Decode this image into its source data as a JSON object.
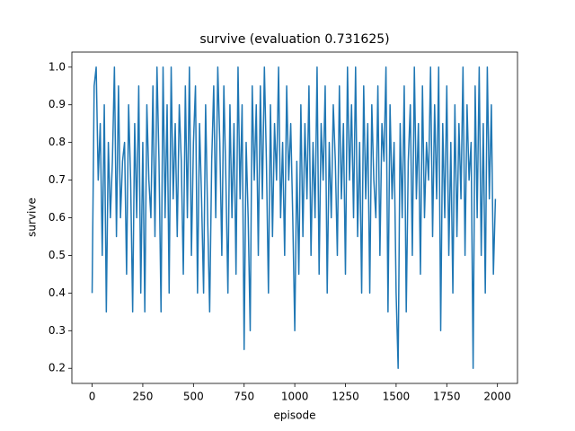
{
  "chart_data": {
    "type": "line",
    "title": "survive (evaluation 0.731625)",
    "xlabel": "episode",
    "ylabel": "survive",
    "color": "#1f77b4",
    "x": [
      0,
      10,
      20,
      30,
      40,
      50,
      60,
      70,
      80,
      90,
      100,
      110,
      120,
      130,
      140,
      150,
      160,
      170,
      180,
      190,
      200,
      210,
      220,
      230,
      240,
      250,
      260,
      270,
      280,
      290,
      300,
      310,
      320,
      330,
      340,
      350,
      360,
      370,
      380,
      390,
      400,
      410,
      420,
      430,
      440,
      450,
      460,
      470,
      480,
      490,
      500,
      510,
      520,
      530,
      540,
      550,
      560,
      570,
      580,
      590,
      600,
      610,
      620,
      630,
      640,
      650,
      660,
      670,
      680,
      690,
      700,
      710,
      720,
      730,
      740,
      750,
      760,
      770,
      780,
      790,
      800,
      810,
      820,
      830,
      840,
      850,
      860,
      870,
      880,
      890,
      900,
      910,
      920,
      930,
      940,
      950,
      960,
      970,
      980,
      990,
      1000,
      1010,
      1020,
      1030,
      1040,
      1050,
      1060,
      1070,
      1080,
      1090,
      1100,
      1110,
      1120,
      1130,
      1140,
      1150,
      1160,
      1170,
      1180,
      1190,
      1200,
      1210,
      1220,
      1230,
      1240,
      1250,
      1260,
      1270,
      1280,
      1290,
      1300,
      1310,
      1320,
      1330,
      1340,
      1350,
      1360,
      1370,
      1380,
      1390,
      1400,
      1410,
      1420,
      1430,
      1440,
      1450,
      1460,
      1470,
      1480,
      1490,
      1500,
      1510,
      1520,
      1530,
      1540,
      1550,
      1560,
      1570,
      1580,
      1590,
      1600,
      1610,
      1620,
      1630,
      1640,
      1650,
      1660,
      1670,
      1680,
      1690,
      1700,
      1710,
      1720,
      1730,
      1740,
      1750,
      1760,
      1770,
      1780,
      1790,
      1800,
      1810,
      1820,
      1830,
      1840,
      1850,
      1860,
      1870,
      1880,
      1890,
      1900,
      1910,
      1920,
      1930,
      1940,
      1950,
      1960,
      1970,
      1980,
      1990
    ],
    "values": [
      0.4,
      0.95,
      1.0,
      0.7,
      0.85,
      0.5,
      0.9,
      0.35,
      0.8,
      0.6,
      0.75,
      1.0,
      0.55,
      0.95,
      0.6,
      0.75,
      0.8,
      0.45,
      0.9,
      0.7,
      0.35,
      0.85,
      0.6,
      0.95,
      0.4,
      0.8,
      0.35,
      0.9,
      0.7,
      0.6,
      0.95,
      0.55,
      1.0,
      0.75,
      0.35,
      1.0,
      0.6,
      0.9,
      0.4,
      1.0,
      0.65,
      0.85,
      0.55,
      0.9,
      0.75,
      0.45,
      0.95,
      0.6,
      1.0,
      0.5,
      0.8,
      0.95,
      0.4,
      0.85,
      0.65,
      0.4,
      0.9,
      0.6,
      0.35,
      0.75,
      0.95,
      0.6,
      1.0,
      0.8,
      0.5,
      0.95,
      0.7,
      0.4,
      0.9,
      0.6,
      0.85,
      0.45,
      1.0,
      0.65,
      0.9,
      0.25,
      0.8,
      0.6,
      0.3,
      0.95,
      0.7,
      0.9,
      0.5,
      0.95,
      0.65,
      1.0,
      0.75,
      0.4,
      0.9,
      0.55,
      0.85,
      0.7,
      1.0,
      0.6,
      0.8,
      0.5,
      0.95,
      0.7,
      0.85,
      0.6,
      0.3,
      0.75,
      0.45,
      0.9,
      0.55,
      0.85,
      0.65,
      0.95,
      0.5,
      0.8,
      0.6,
      1.0,
      0.45,
      0.85,
      0.7,
      0.95,
      0.4,
      0.8,
      0.6,
      0.9,
      0.75,
      0.5,
      0.95,
      0.65,
      0.85,
      0.45,
      1.0,
      0.7,
      0.9,
      0.6,
      1.0,
      0.55,
      0.8,
      0.4,
      0.95,
      0.65,
      0.85,
      0.4,
      0.9,
      0.7,
      0.6,
      0.95,
      0.5,
      0.85,
      0.75,
      1.0,
      0.35,
      0.9,
      0.65,
      0.8,
      0.4,
      0.2,
      0.85,
      0.6,
      0.95,
      0.35,
      0.75,
      0.9,
      0.5,
      1.0,
      0.65,
      0.85,
      0.45,
      0.95,
      0.6,
      0.8,
      0.7,
      1.0,
      0.55,
      0.9,
      0.65,
      1.0,
      0.3,
      0.85,
      0.6,
      0.95,
      0.5,
      0.8,
      0.4,
      0.9,
      0.55,
      0.85,
      0.65,
      1.0,
      0.5,
      0.9,
      0.7,
      0.8,
      0.2,
      0.95,
      0.6,
      1.0,
      0.5,
      0.85,
      0.4,
      1.0,
      0.65,
      0.9,
      0.45,
      0.65
    ],
    "xlim": [
      -99.95,
      2098.95
    ],
    "ylim": [
      0.16,
      1.04
    ],
    "xticks": [
      0,
      250,
      500,
      750,
      1000,
      1250,
      1500,
      1750,
      2000
    ],
    "yticks": [
      0.2,
      0.3,
      0.4,
      0.5,
      0.6,
      0.7,
      0.8,
      0.9,
      {
        "value": 1,
        "label": "1.0"
      }
    ]
  }
}
